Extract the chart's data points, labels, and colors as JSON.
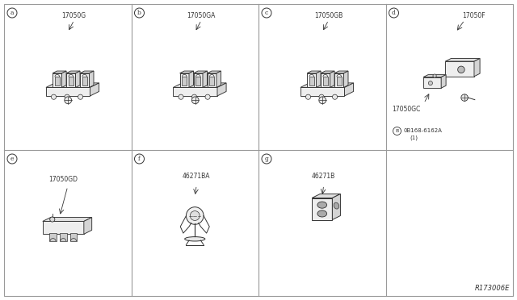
{
  "bg_color": "#ffffff",
  "border_color": "#999999",
  "line_color": "#333333",
  "ref_code": "R173006E",
  "fig_width": 6.4,
  "fig_height": 3.72,
  "grid_cols": 4,
  "grid_rows": 2,
  "cells": [
    {
      "col": 0,
      "row": 0,
      "label": "a",
      "part": "17050G",
      "type": "clamp3"
    },
    {
      "col": 1,
      "row": 0,
      "label": "b",
      "part": "17050GA",
      "type": "clamp3b"
    },
    {
      "col": 2,
      "row": 0,
      "label": "c",
      "part": "17050GB",
      "type": "clamp3c"
    },
    {
      "col": 3,
      "row": 0,
      "label": "d",
      "part": "17050F",
      "part2": "17050GC",
      "part3": "0B168-6162A",
      "part3b": "(1)",
      "type": "bracket_set"
    },
    {
      "col": 0,
      "row": 1,
      "label": "e",
      "part": "17050GD",
      "type": "long_bracket"
    },
    {
      "col": 1,
      "row": 1,
      "label": "f",
      "part": "46271BA",
      "type": "spring_clip"
    },
    {
      "col": 2,
      "row": 1,
      "label": "g",
      "part": "46271B",
      "type": "block"
    }
  ]
}
